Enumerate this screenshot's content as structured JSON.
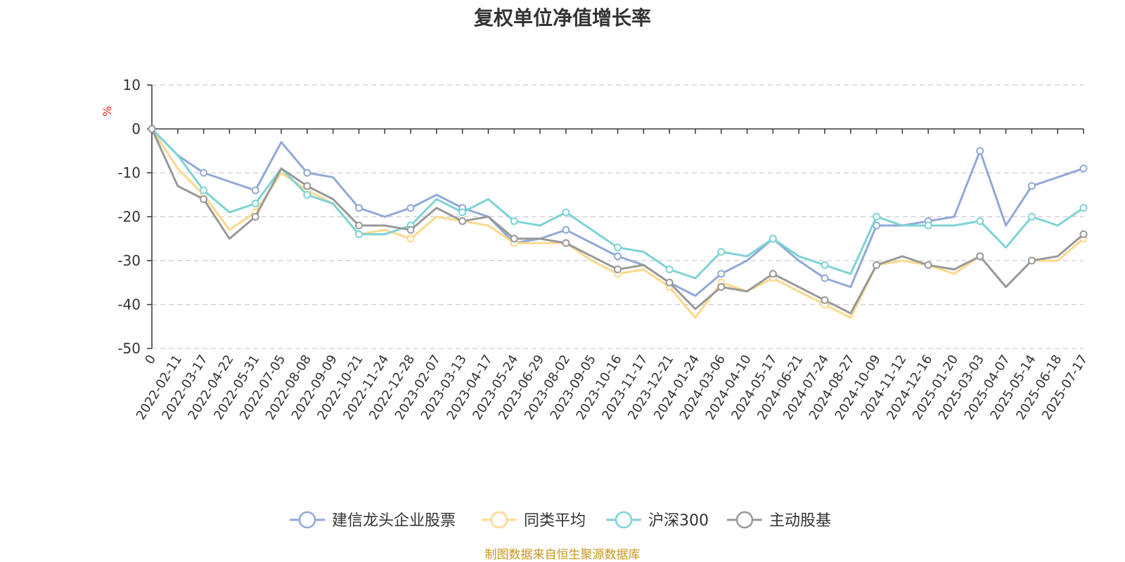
{
  "chart_data": {
    "type": "line",
    "title": "复权单位净值增长率",
    "ylabel": "%",
    "ylim": [
      -50,
      10
    ],
    "yticks": [
      10,
      0,
      -10,
      -20,
      -30,
      -40,
      -50
    ],
    "grid": true,
    "legend_position": "bottom",
    "x_labels": [
      "0",
      "2022-02-11",
      "2022-03-17",
      "2022-04-22",
      "2022-05-31",
      "2022-07-05",
      "2022-08-08",
      "2022-09-09",
      "2022-10-21",
      "2022-11-24",
      "2022-12-28",
      "2023-02-07",
      "2023-03-13",
      "2023-04-17",
      "2023-05-24",
      "2023-06-29",
      "2023-08-02",
      "2023-09-05",
      "2023-10-16",
      "2023-11-17",
      "2023-12-21",
      "2024-01-24",
      "2024-03-06",
      "2024-04-10",
      "2024-05-17",
      "2024-06-21",
      "2024-07-24",
      "2024-08-27",
      "2024-10-09",
      "2024-11-12",
      "2024-12-16",
      "2025-01-20",
      "2025-03-03",
      "2025-04-07",
      "2025-05-14",
      "2025-06-18",
      "2025-07-17"
    ],
    "series": [
      {
        "name": "建信龙头企业股票",
        "color": "#8fa9d8",
        "values": [
          0,
          -6,
          -10,
          -12,
          -14,
          -3,
          -10,
          -11,
          -18,
          -20,
          -18,
          -15,
          -18,
          -20,
          -26,
          -25,
          -23,
          -26,
          -29,
          -31,
          -35,
          -38,
          -33,
          -30,
          -25,
          -30,
          -34,
          -36,
          -22,
          -22,
          -21,
          -20,
          -5,
          -22,
          -13,
          -11,
          -9
        ]
      },
      {
        "name": "同类平均",
        "color": "#fcd88c",
        "values": [
          0,
          -9,
          -15,
          -23,
          -19,
          -10,
          -14,
          -17,
          -24,
          -23,
          -25,
          -20,
          -21,
          -22,
          -26,
          -26,
          -26,
          -30,
          -33,
          -32,
          -36,
          -43,
          -35,
          -37,
          -34,
          -37,
          -40,
          -43,
          -31,
          -30,
          -31,
          -33,
          -29,
          -36,
          -30,
          -30,
          -25
        ]
      },
      {
        "name": "沪深300",
        "color": "#7dd3d6",
        "values": [
          0,
          -6,
          -14,
          -19,
          -17,
          -9,
          -15,
          -17,
          -24,
          -24,
          -22,
          -16,
          -19,
          -16,
          -21,
          -22,
          -19,
          -23,
          -27,
          -28,
          -32,
          -34,
          -28,
          -29,
          -25,
          -29,
          -31,
          -33,
          -20,
          -22,
          -22,
          -22,
          -21,
          -27,
          -20,
          -22,
          -18
        ]
      },
      {
        "name": "主动股基",
        "color": "#999999",
        "values": [
          0,
          -13,
          -16,
          -25,
          -20,
          -9,
          -13,
          -16,
          -22,
          -22,
          -23,
          -18,
          -21,
          -20,
          -25,
          -25,
          -26,
          -29,
          -32,
          -31,
          -35,
          -41,
          -36,
          -37,
          -33,
          -36,
          -39,
          -42,
          -31,
          -29,
          -31,
          -32,
          -29,
          -36,
          -30,
          -29,
          -24
        ]
      }
    ]
  },
  "source_note": "制图数据来自恒生聚源数据库"
}
